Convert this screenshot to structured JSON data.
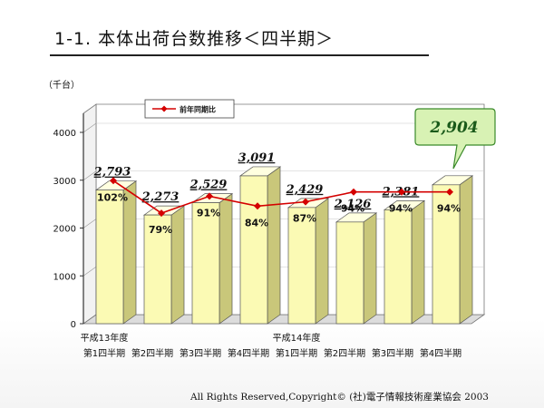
{
  "slide": {
    "title": "1-1. 本体出荷台数推移＜四半期＞",
    "footer": "All Rights Reserved,Copyright© (社)電子情報技術産業協会 2003"
  },
  "colors": {
    "bar_front": "#fbfab4",
    "bar_side": "#c9c77a",
    "bar_top": "#ffffe0",
    "line": "#d40000",
    "callout_bg": "#d8f2b4",
    "callout_border": "#3a8a2a",
    "callout_text": "#1a5a1a"
  },
  "chart_data": {
    "type": "bar",
    "ylabel": "（千台）",
    "ylim": [
      0,
      4500
    ],
    "yticks": [
      0,
      1000,
      2000,
      3000,
      4000
    ],
    "grid": true,
    "legend_position": "top-left",
    "categories": [
      [
        "平成13年度",
        "第1四半期"
      ],
      [
        "",
        "第2四半期"
      ],
      [
        "",
        "第3四半期"
      ],
      [
        "",
        "第4四半期"
      ],
      [
        "平成14年度",
        "第1四半期"
      ],
      [
        "",
        "第2四半期"
      ],
      [
        "",
        "第3四半期"
      ],
      [
        "",
        "第4四半期"
      ]
    ],
    "series": [
      {
        "name": "",
        "type": "bar",
        "values": [
          2793,
          2273,
          2529,
          3091,
          2429,
          2126,
          2381,
          2904
        ],
        "labels": [
          "2,793",
          "2,273",
          "2,529",
          "3,091",
          "2,429",
          "2,126",
          "2,381",
          "2,904"
        ]
      },
      {
        "name": "前年同期比",
        "type": "line",
        "values": [
          102,
          79,
          91,
          84,
          87,
          94,
          94,
          94
        ],
        "labels": [
          "102%",
          "79%",
          "91%",
          "84%",
          "87%",
          "94%",
          "94%",
          "94%"
        ]
      }
    ],
    "callout": {
      "index": 7,
      "text": "2,904"
    }
  }
}
